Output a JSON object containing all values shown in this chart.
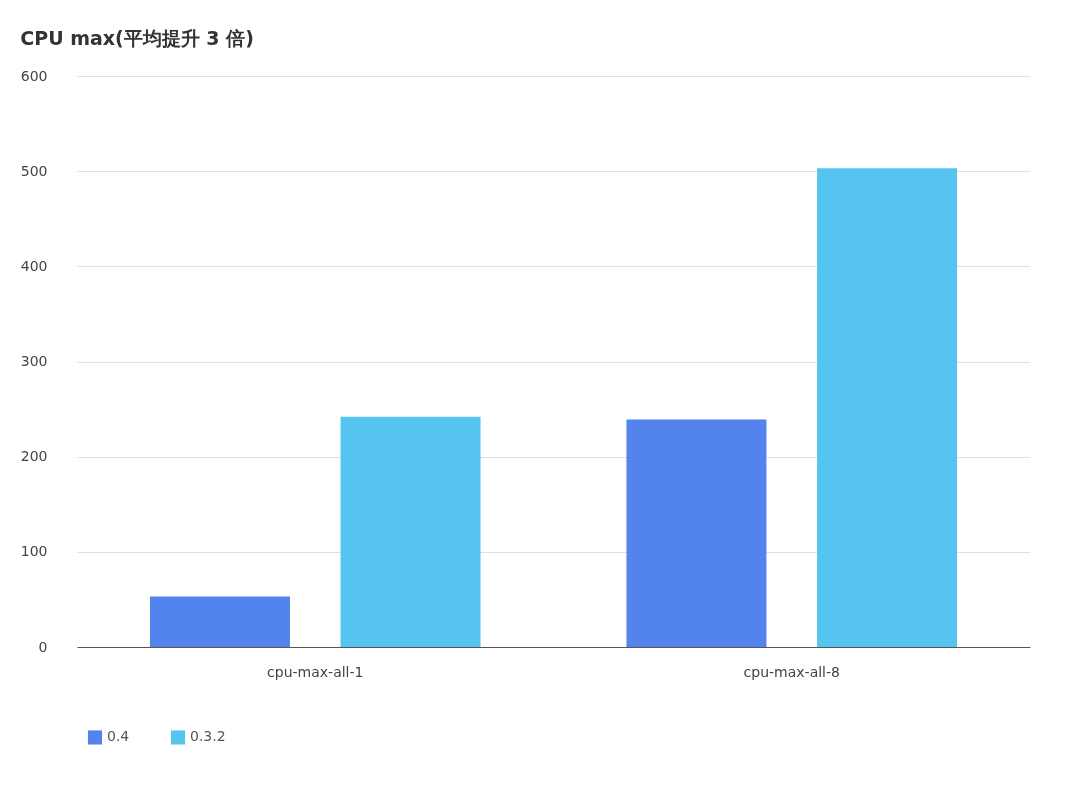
{
  "chart_data": {
    "type": "bar",
    "title": "CPU max(平均提升 3 倍)",
    "categories": [
      "cpu-max-all-1",
      "cpu-max-all-8"
    ],
    "series": [
      {
        "name": "0.4",
        "color": "#5383ec",
        "values": [
          53,
          239
        ]
      },
      {
        "name": "0.3.2",
        "color": "#55c5ef",
        "values": [
          242,
          503
        ]
      }
    ],
    "ylim": [
      0,
      600
    ],
    "yticks": [
      0,
      100,
      200,
      300,
      400,
      500,
      600
    ],
    "grid": "y",
    "legend": "bottom"
  }
}
